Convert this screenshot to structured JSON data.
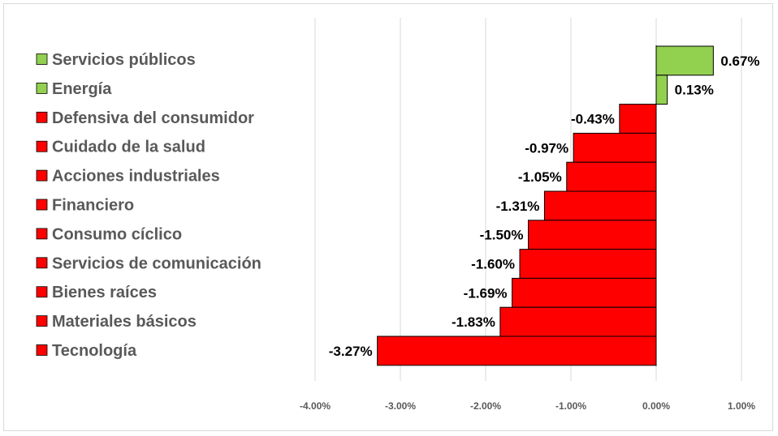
{
  "chart_data": {
    "type": "bar",
    "orientation": "horizontal",
    "categories": [
      "Servicios públicos",
      "Energía",
      "Defensiva del consumidor",
      "Cuidado de la salud",
      "Acciones industriales",
      "Financiero",
      "Consumo cíclico",
      "Servicios de comunicación",
      "Bienes raíces",
      "Materiales básicos",
      "Tecnología"
    ],
    "values": [
      0.67,
      0.13,
      -0.43,
      -0.97,
      -1.05,
      -1.31,
      -1.5,
      -1.6,
      -1.69,
      -1.83,
      -3.27
    ],
    "value_labels": [
      "0.67%",
      "0.13%",
      "-0.43%",
      "-0.97%",
      "-1.05%",
      "-1.31%",
      "-1.50%",
      "-1.60%",
      "-1.69%",
      "-1.83%",
      "-3.27%"
    ],
    "xlim": [
      -4,
      1
    ],
    "x_ticks": [
      -4,
      -3,
      -2,
      -1,
      0,
      1
    ],
    "x_tick_labels": [
      "-4.00%",
      "-3.00%",
      "-2.00%",
      "-1.00%",
      "0.00%",
      "1.00%"
    ],
    "colors": {
      "positive": "#92d050",
      "negative": "#ff0000",
      "grid": "#d9d9d9",
      "bar_border": "#000000"
    },
    "legend_position": "left",
    "grid": true,
    "title": "",
    "xlabel": "",
    "ylabel": ""
  }
}
